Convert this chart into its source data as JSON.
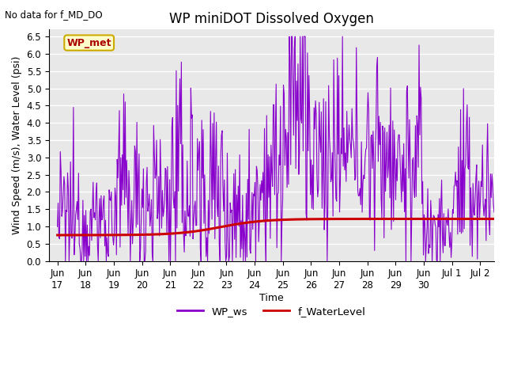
{
  "title": "WP miniDOT Dissolved Oxygen",
  "no_data_text": "No data for f_MD_DO",
  "ylabel": "Wind Speed (m/s), Water Level (psi)",
  "xlabel": "Time",
  "ylim": [
    0.0,
    6.7
  ],
  "bg_color": "#e8e8e8",
  "grid_color": "#ffffff",
  "wp_ws_color": "#8800cc",
  "f_wl_color": "#cc0000",
  "legend_label_ws": "WP_ws",
  "legend_label_wl": "f_WaterLevel",
  "inset_label": "WP_met",
  "inset_bg": "#ffffcc",
  "inset_border": "#ccaa00",
  "title_fontsize": 12,
  "tick_label_fontsize": 8.5,
  "axis_label_fontsize": 9,
  "x_tick_labels": [
    "Jun\n17",
    "Jun\n18",
    "Jun\n19",
    "Jun\n20",
    "Jun\n21",
    "Jun\n22",
    "Jun\n23",
    "Jun\n24",
    "Jun\n25",
    "Jun\n26",
    "Jun\n27",
    "Jun\n28",
    "Jun\n29",
    "Jun\n30",
    "Jul 1",
    "Jul 2"
  ],
  "yticks": [
    0.0,
    0.5,
    1.0,
    1.5,
    2.0,
    2.5,
    3.0,
    3.5,
    4.0,
    4.5,
    5.0,
    5.5,
    6.0,
    6.5
  ]
}
